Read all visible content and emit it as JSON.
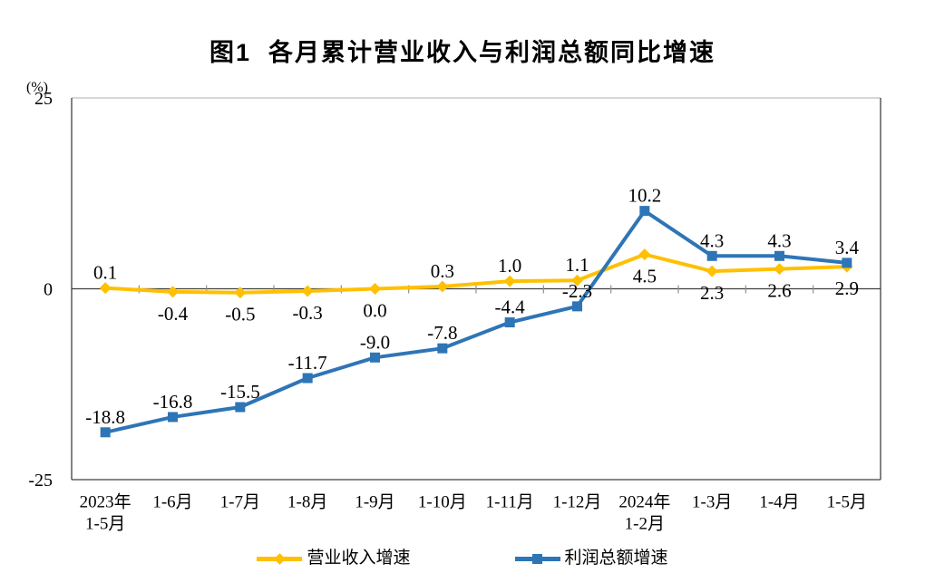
{
  "chart_data": {
    "type": "line",
    "title": "图1  各月累计营业收入与利润总额同比增速",
    "unit_label": "(%)",
    "ylim": [
      -25,
      25
    ],
    "yticks": [
      {
        "value": 25,
        "label": "25"
      },
      {
        "value": 0,
        "label": "0"
      },
      {
        "value": -25,
        "label": "-25"
      }
    ],
    "grid": false,
    "legend_position": "bottom",
    "categories": [
      "2023年\n1-5月",
      "1-6月",
      "1-7月",
      "1-8月",
      "1-9月",
      "1-10月",
      "1-11月",
      "1-12月",
      "2024年\n1-2月",
      "1-3月",
      "1-4月",
      "1-5月"
    ],
    "series": [
      {
        "name": "营业收入增速",
        "color": "#FFC000",
        "marker": "diamond",
        "values": [
          0.1,
          -0.4,
          -0.5,
          -0.3,
          0.0,
          0.3,
          1.0,
          1.1,
          4.5,
          2.3,
          2.6,
          2.9
        ],
        "labels": [
          "0.1",
          "-0.4",
          "-0.5",
          "-0.3",
          "0.0",
          "0.3",
          "1.0",
          "1.1",
          "4.5",
          "2.3",
          "2.6",
          "2.9"
        ],
        "label_positions": [
          "above",
          "below",
          "below",
          "below",
          "below",
          "above",
          "above",
          "above",
          "below",
          "below",
          "below",
          "below"
        ]
      },
      {
        "name": "利润总额增速",
        "color": "#2E75B6",
        "marker": "square",
        "values": [
          -18.8,
          -16.8,
          -15.5,
          -11.7,
          -9.0,
          -7.8,
          -4.4,
          -2.3,
          10.2,
          4.3,
          4.3,
          3.4
        ],
        "labels": [
          "-18.8",
          "-16.8",
          "-15.5",
          "-11.7",
          "-9.0",
          "-7.8",
          "-4.4",
          "-2.3",
          "10.2",
          "4.3",
          "4.3",
          "3.4"
        ],
        "label_positions": [
          "above",
          "above",
          "above",
          "above",
          "above",
          "above",
          "above",
          "above",
          "above",
          "above",
          "above",
          "above"
        ]
      }
    ],
    "axis_colors": {
      "box_top": "#BFBFBF",
      "box_sides": "#404040",
      "zero_line": "#404040",
      "tick": "#909090",
      "text": "#000000"
    }
  }
}
